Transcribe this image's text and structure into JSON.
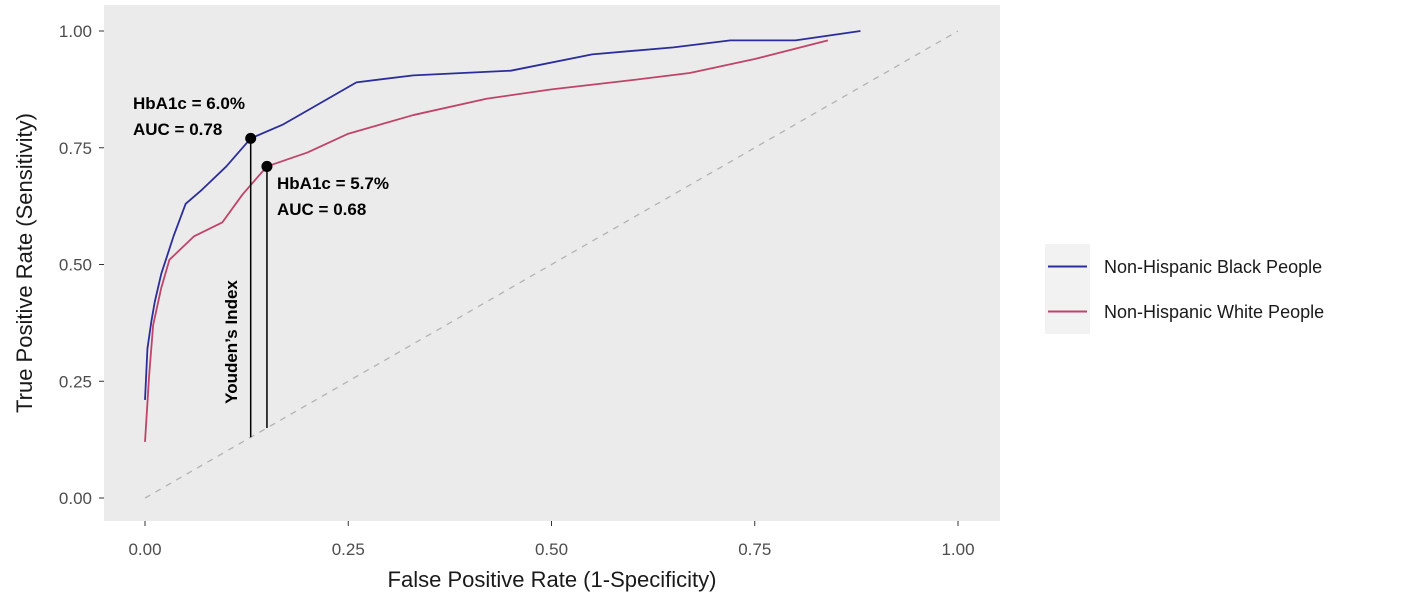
{
  "chart_data": {
    "type": "line",
    "xlabel": "False Positive Rate (1-Specificity)",
    "ylabel": "True Positive Rate (Sensitivity)",
    "xlim": [
      0,
      1
    ],
    "ylim": [
      0,
      1
    ],
    "x_ticks": [
      0,
      0.25,
      0.5,
      0.75,
      1
    ],
    "y_ticks": [
      0,
      0.25,
      0.5,
      0.75,
      1
    ],
    "x_tick_labels": [
      "0.00",
      "0.25",
      "0.50",
      "0.75",
      "1.00"
    ],
    "y_tick_labels": [
      "0.00",
      "0.25",
      "0.50",
      "0.75",
      "1.00"
    ],
    "grid": false,
    "legend_position": "right",
    "reference_line": {
      "style": "dashed",
      "color": "#b3b3b3",
      "from": [
        0,
        0
      ],
      "to": [
        1,
        1
      ]
    },
    "series": [
      {
        "name": "Non-Hispanic Black People",
        "color": "#2b2d9c",
        "points": [
          [
            0.0,
            0.21
          ],
          [
            0.003,
            0.32
          ],
          [
            0.008,
            0.38
          ],
          [
            0.012,
            0.42
          ],
          [
            0.02,
            0.48
          ],
          [
            0.035,
            0.56
          ],
          [
            0.05,
            0.63
          ],
          [
            0.07,
            0.66
          ],
          [
            0.1,
            0.71
          ],
          [
            0.13,
            0.77
          ],
          [
            0.17,
            0.8
          ],
          [
            0.21,
            0.84
          ],
          [
            0.26,
            0.89
          ],
          [
            0.33,
            0.905
          ],
          [
            0.45,
            0.915
          ],
          [
            0.55,
            0.95
          ],
          [
            0.65,
            0.965
          ],
          [
            0.72,
            0.98
          ],
          [
            0.8,
            0.98
          ],
          [
            0.88,
            1.0
          ]
        ]
      },
      {
        "name": "Non-Hispanic White People",
        "color": "#c0446a",
        "points": [
          [
            0.0,
            0.12
          ],
          [
            0.005,
            0.26
          ],
          [
            0.01,
            0.37
          ],
          [
            0.02,
            0.45
          ],
          [
            0.03,
            0.51
          ],
          [
            0.06,
            0.56
          ],
          [
            0.095,
            0.59
          ],
          [
            0.12,
            0.65
          ],
          [
            0.15,
            0.71
          ],
          [
            0.2,
            0.74
          ],
          [
            0.25,
            0.78
          ],
          [
            0.33,
            0.82
          ],
          [
            0.42,
            0.855
          ],
          [
            0.5,
            0.875
          ],
          [
            0.6,
            0.895
          ],
          [
            0.67,
            0.91
          ],
          [
            0.75,
            0.94
          ],
          [
            0.84,
            0.98
          ]
        ]
      }
    ],
    "youden_points": [
      {
        "series": "Non-Hispanic Black People",
        "x": 0.13,
        "y": 0.77,
        "label_line1": "HbA1c = 6.0%",
        "label_line2": "AUC = 0.78",
        "drop_to_y": 0.13
      },
      {
        "series": "Non-Hispanic White People",
        "x": 0.15,
        "y": 0.71,
        "label_line1": "HbA1c = 5.7%",
        "label_line2": "AUC = 0.68",
        "drop_to_y": 0.15
      }
    ],
    "youden_label": "Youden’s Index"
  },
  "colors": {
    "panel_background": "#ebebeb",
    "legend_key_background": "#f2f2f2",
    "annotation": "#000000"
  }
}
